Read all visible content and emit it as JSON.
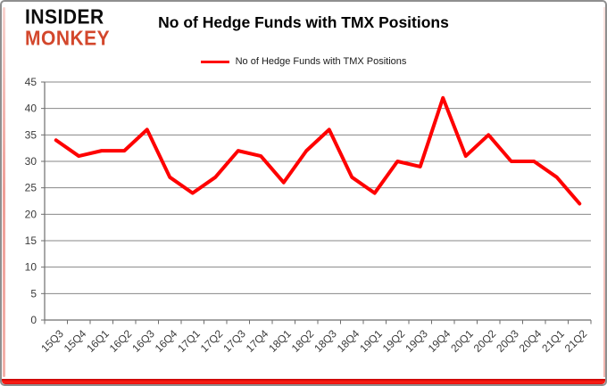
{
  "branding": {
    "logo_line1": "INSIDER",
    "logo_line2": "MONKEY",
    "logo_color_primary": "#0d0d0d",
    "logo_color_secondary": "#d3472c"
  },
  "header": {
    "title": "No of Hedge Funds with TMX Positions",
    "legend_label": "No of Hedge Funds with TMX Positions"
  },
  "colors": {
    "series_line": "#fe0000",
    "gridline": "#878787",
    "axis": "#6e6e6e",
    "tick_text": "#3a3a3a",
    "frame_bottom_accent": "#e01010"
  },
  "chart_data": {
    "type": "line",
    "title": "No of Hedge Funds with TMX Positions",
    "categories": [
      "15Q3",
      "15Q4",
      "16Q1",
      "16Q2",
      "16Q3",
      "16Q4",
      "17Q1",
      "17Q2",
      "17Q3",
      "17Q4",
      "18Q1",
      "18Q2",
      "18Q3",
      "18Q4",
      "19Q1",
      "19Q2",
      "19Q3",
      "19Q4",
      "20Q1",
      "20Q2",
      "20Q3",
      "20Q4",
      "21Q1",
      "21Q2"
    ],
    "series": [
      {
        "name": "No of Hedge Funds with TMX Positions",
        "color": "#fe0000",
        "values": [
          34,
          31,
          32,
          32,
          36,
          27,
          24,
          27,
          32,
          31,
          26,
          32,
          36,
          27,
          24,
          30,
          29,
          42,
          31,
          35,
          30,
          30,
          27,
          22
        ]
      }
    ],
    "xlabel": "",
    "ylabel": "",
    "ylim": [
      0,
      45
    ],
    "yticks": [
      0,
      5,
      10,
      15,
      20,
      25,
      30,
      35,
      40,
      45
    ],
    "grid": true,
    "legend_position": "top",
    "x_label_rotation": -45
  }
}
